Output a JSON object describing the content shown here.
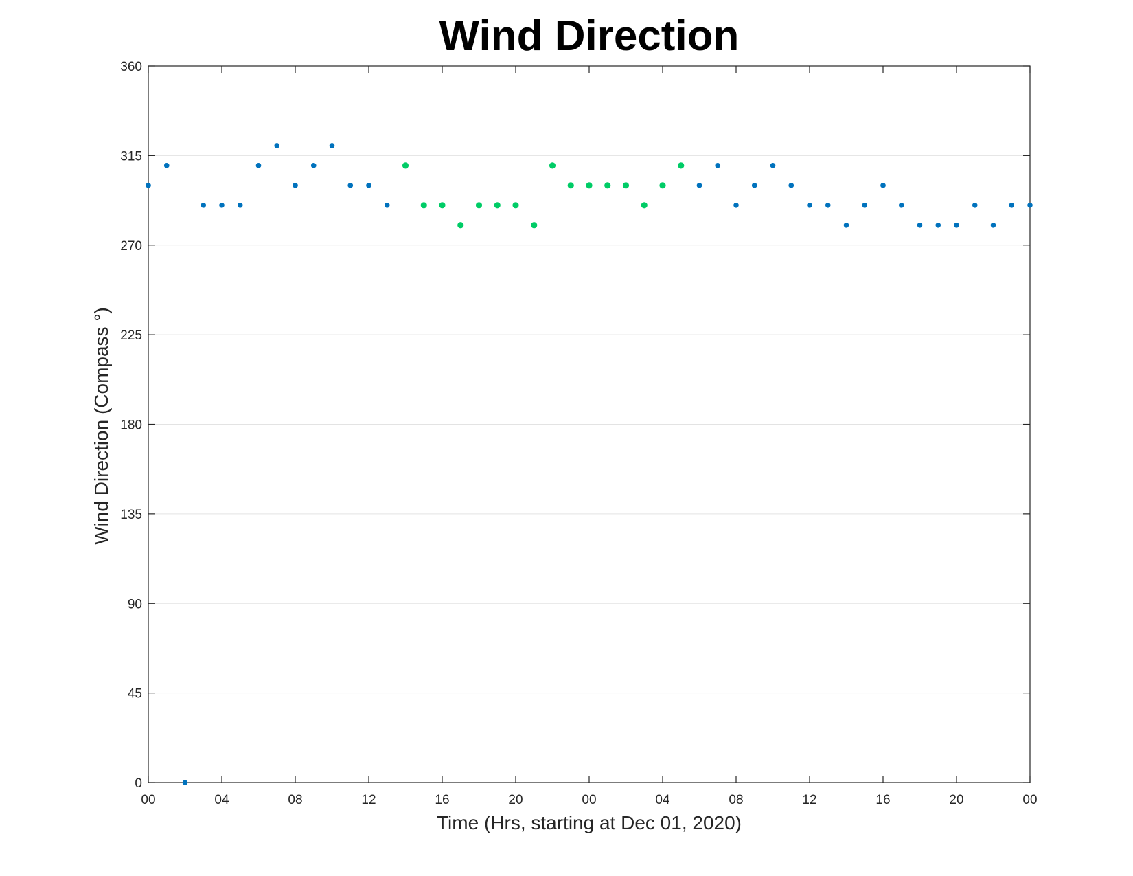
{
  "chart_data": {
    "type": "scatter",
    "title": "Wind Direction",
    "xlabel": "Time (Hrs, starting at Dec 01, 2020)",
    "ylabel": "Wind Direction (Compass °)",
    "xlim": [
      0,
      48
    ],
    "ylim": [
      0,
      360
    ],
    "x_ticks": [
      0,
      4,
      8,
      12,
      16,
      20,
      24,
      28,
      32,
      36,
      40,
      44,
      48
    ],
    "x_tick_labels": [
      "00",
      "04",
      "08",
      "12",
      "16",
      "20",
      "00",
      "04",
      "08",
      "12",
      "16",
      "20",
      "00"
    ],
    "y_ticks": [
      0,
      45,
      90,
      135,
      180,
      225,
      270,
      315,
      360
    ],
    "y_tick_labels": [
      "0",
      "45",
      "90",
      "135",
      "180",
      "225",
      "270",
      "315",
      "360"
    ],
    "grid": "horizontal",
    "colors": {
      "blue": "#0072bd",
      "green": "#00cc66"
    },
    "x": [
      0,
      1,
      2,
      3,
      4,
      5,
      6,
      7,
      8,
      9,
      10,
      11,
      12,
      13,
      14,
      15,
      16,
      17,
      18,
      19,
      20,
      21,
      22,
      23,
      24,
      25,
      26,
      27,
      28,
      29,
      30,
      31,
      32,
      33,
      34,
      35,
      36,
      37,
      38,
      39,
      40,
      41,
      42,
      43,
      44,
      45,
      46,
      47,
      48
    ],
    "y": [
      300,
      310,
      0,
      290,
      290,
      290,
      310,
      320,
      300,
      310,
      320,
      300,
      300,
      290,
      310,
      290,
      290,
      280,
      290,
      290,
      290,
      280,
      310,
      300,
      300,
      300,
      300,
      290,
      300,
      310,
      300,
      310,
      290,
      300,
      310,
      300,
      290,
      290,
      280,
      290,
      300,
      290,
      280,
      280,
      280,
      290,
      280,
      290,
      290
    ],
    "point_colors": [
      "blue",
      "blue",
      "blue",
      "blue",
      "blue",
      "blue",
      "blue",
      "blue",
      "blue",
      "blue",
      "blue",
      "blue",
      "blue",
      "blue",
      "green",
      "green",
      "green",
      "green",
      "green",
      "green",
      "green",
      "green",
      "green",
      "green",
      "green",
      "green",
      "green",
      "green",
      "green",
      "green",
      "blue",
      "blue",
      "blue",
      "blue",
      "blue",
      "blue",
      "blue",
      "blue",
      "blue",
      "blue",
      "blue",
      "blue",
      "blue",
      "blue",
      "blue",
      "blue",
      "blue",
      "blue",
      "blue"
    ]
  }
}
